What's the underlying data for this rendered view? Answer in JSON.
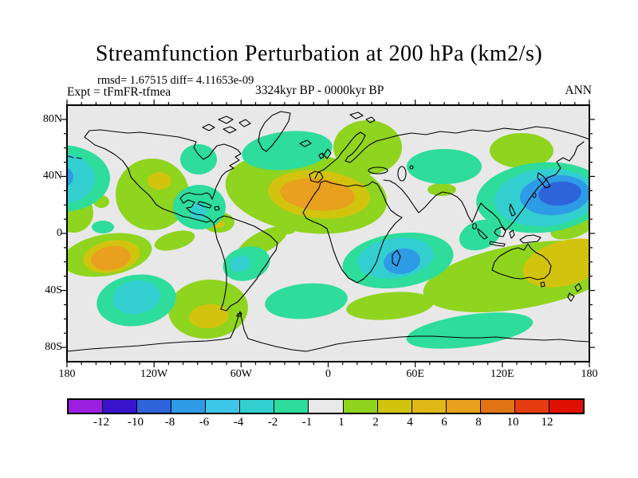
{
  "header": {
    "title": "Streamfunction Perturbation at 200 hPa (km2/s)",
    "stats_line": "rmsd= 1.67515 diff= 4.11653e-09",
    "expt_label": "Expt = tFmFR-tfmea",
    "period_label": "3324kyr BP - 0000kyr BP",
    "season_label": "ANN"
  },
  "chart_data": {
    "type": "filled_contour_map",
    "title": "Streamfunction Perturbation at 200 hPa (km2/s)",
    "variable": "Streamfunction Perturbation",
    "level": "200 hPa",
    "units": "km2/s",
    "rmsd": 1.67515,
    "diff": 4.11653e-09,
    "period": "3324kyr BP - 0000kyr BP",
    "season": "ANN",
    "projection": "equirectangular",
    "lon_range": [
      -180,
      180
    ],
    "lat_range": [
      -90,
      90
    ],
    "lon_ticks": {
      "major": [
        {
          "label": "180",
          "lon": -180
        },
        {
          "label": "120W",
          "lon": -120
        },
        {
          "label": "60W",
          "lon": -60
        },
        {
          "label": "0",
          "lon": 0
        },
        {
          "label": "60E",
          "lon": 60
        },
        {
          "label": "120E",
          "lon": 120
        },
        {
          "label": "180",
          "lon": 180
        }
      ],
      "minor_interval_deg": 10
    },
    "lat_ticks": {
      "major": [
        {
          "label": "80N",
          "lat": 80
        },
        {
          "label": "40N",
          "lat": 40
        },
        {
          "label": "0",
          "lat": 0
        },
        {
          "label": "40S",
          "lat": -40
        },
        {
          "label": "80S",
          "lat": -80
        }
      ],
      "minor_interval_deg": 10
    },
    "colorbar": {
      "boundaries": [
        -12,
        -10,
        -8,
        -6,
        -4,
        -2,
        -1,
        1,
        2,
        4,
        6,
        8,
        10,
        12
      ],
      "colors": [
        "#9B1FE0",
        "#3914CC",
        "#2E63DC",
        "#2E9BE6",
        "#3EC6E8",
        "#33CFD0",
        "#2EDC9C",
        "#E8E8E8",
        "#8FD41F",
        "#D2C40E",
        "#E0B818",
        "#E8A01E",
        "#E07414",
        "#E63C12",
        "#E01000"
      ],
      "neutral_band": "-1 to 1 (gray background)"
    },
    "ring_format": "[color_band_index, cx, cy, rx, ry, rot] in map pixels (655x322, 0/0 = 180W/90N)",
    "anomalies": [
      {
        "name": "north-atlantic-africa-positive",
        "sign": "+",
        "peak_band": "6 to 8",
        "rings": [
          [
            8,
            300,
            110,
            102,
            50,
            8
          ],
          [
            9,
            316,
            112,
            64,
            30,
            5
          ],
          [
            11,
            314,
            112,
            47,
            20,
            5
          ]
        ]
      },
      {
        "name": "europe-scandinavia-positive",
        "sign": "+",
        "peak_band": "1 to 2",
        "rings": [
          [
            8,
            377,
            53,
            43,
            34,
            0
          ]
        ]
      },
      {
        "name": "western-north-america-positive",
        "sign": "+",
        "peak_band": "2 to 4",
        "rings": [
          [
            8,
            107,
            112,
            46,
            45,
            0
          ],
          [
            9,
            116,
            95,
            15,
            11,
            0
          ]
        ]
      },
      {
        "name": "caribbean-positive",
        "sign": "+",
        "peak_band": "2 to 4",
        "rings": [
          [
            8,
            190,
            147,
            20,
            13,
            0
          ],
          [
            9,
            189,
            149,
            9,
            5,
            0
          ]
        ]
      },
      {
        "name": "ne-siberia-positive",
        "sign": "+",
        "peak_band": "1 to 2",
        "rings": [
          [
            8,
            570,
            57,
            40,
            22,
            0
          ]
        ]
      },
      {
        "name": "central-asia-small-positive",
        "sign": "+",
        "peak_band": "1 to 2",
        "rings": [
          [
            8,
            470,
            106,
            18,
            8,
            0
          ]
        ]
      },
      {
        "name": "se-pacific-positive-wrap-west",
        "sign": "+",
        "peak_band": "6 to 8",
        "rings": [
          [
            8,
            50,
            188,
            57,
            26,
            -10
          ],
          [
            9,
            56,
            190,
            36,
            20,
            -10
          ],
          [
            11,
            55,
            192,
            25,
            15,
            -10
          ]
        ]
      },
      {
        "name": "patagonia-positive",
        "sign": "+",
        "peak_band": "2 to 4",
        "rings": [
          [
            8,
            177,
            256,
            50,
            37,
            -5
          ],
          [
            9,
            178,
            265,
            25,
            15,
            -5
          ]
        ]
      },
      {
        "name": "australia-swath-positive",
        "sign": "+",
        "peak_band": "2 to 4",
        "rings": [
          [
            8,
            570,
            215,
            125,
            40,
            -10
          ],
          [
            9,
            625,
            198,
            55,
            28,
            -15
          ]
        ]
      },
      {
        "name": "new-guinea-positive",
        "sign": "+",
        "peak_band": "1 to 2",
        "rings": [
          [
            8,
            635,
            152,
            30,
            14,
            -20
          ]
        ]
      },
      {
        "name": "south-america-north-band-1",
        "sign": "+",
        "peak_band": "1 to 2",
        "rings": [
          [
            8,
            135,
            170,
            26,
            11,
            -15
          ]
        ]
      },
      {
        "name": "south-america-north-band-2",
        "sign": "+",
        "peak_band": "1 to 2",
        "rings": [
          [
            8,
            245,
            172,
            35,
            13,
            -28
          ]
        ]
      },
      {
        "name": "gulf-of-guinea-small-positive",
        "sign": "+",
        "peak_band": "1 to 2",
        "rings": [
          [
            8,
            277,
            157,
            9,
            5,
            0
          ]
        ]
      },
      {
        "name": "south-indian-positive",
        "sign": "+",
        "peak_band": "1 to 2",
        "rings": [
          [
            8,
            405,
            252,
            55,
            17,
            -5
          ]
        ]
      },
      {
        "name": "left-edge-green-positive",
        "sign": "+",
        "peak_band": "1 to 2",
        "rings": [
          [
            8,
            8,
            135,
            25,
            25,
            0
          ]
        ]
      },
      {
        "name": "left-dot-green-positive",
        "sign": "+",
        "peak_band": "1 to 2",
        "rings": [
          [
            8,
            43,
            121,
            10,
            8,
            0
          ]
        ]
      },
      {
        "name": "nw-pacific-japan-negative",
        "sign": "-",
        "peak_band": "-10 to -8",
        "rings": [
          [
            6,
            595,
            116,
            82,
            44,
            -5
          ],
          [
            5,
            600,
            116,
            64,
            36,
            -5
          ],
          [
            3,
            612,
            113,
            44,
            25,
            -5
          ],
          [
            2,
            618,
            111,
            27,
            15,
            -5
          ]
        ]
      },
      {
        "name": "nw-pacific-wrap-east-negative",
        "sign": "-",
        "peak_band": "-8 to -6",
        "rings": [
          [
            6,
            -8,
            92,
            62,
            42,
            0
          ],
          [
            5,
            -10,
            92,
            45,
            32,
            0
          ],
          [
            3,
            -12,
            90,
            20,
            15,
            0
          ]
        ]
      },
      {
        "name": "hudson-bay-negative",
        "sign": "-",
        "peak_band": "-2 to -1",
        "rings": [
          [
            6,
            165,
            68,
            23,
            19,
            0
          ]
        ]
      },
      {
        "name": "greenland-north-atlantic-negative",
        "sign": "-",
        "peak_band": "-2 to -1",
        "rings": [
          [
            6,
            276,
            57,
            57,
            24,
            -6
          ]
        ]
      },
      {
        "name": "gulf-of-mexico-negative",
        "sign": "-",
        "peak_band": "-4 to -2",
        "rings": [
          [
            6,
            166,
            128,
            33,
            28,
            0
          ],
          [
            5,
            165,
            133,
            10,
            11,
            0
          ]
        ]
      },
      {
        "name": "central-asia-negative",
        "sign": "-",
        "peak_band": "-2 to -1",
        "rings": [
          [
            6,
            473,
            77,
            47,
            22,
            0
          ]
        ]
      },
      {
        "name": "indonesia-negative",
        "sign": "-",
        "peak_band": "-2 to -1",
        "rings": [
          [
            6,
            518,
            163,
            27,
            18,
            -20
          ]
        ]
      },
      {
        "name": "south-pacific-negative",
        "sign": "-",
        "peak_band": "-4 to -2",
        "rings": [
          [
            6,
            87,
            245,
            50,
            32,
            -8
          ],
          [
            5,
            87,
            241,
            30,
            21,
            -8
          ]
        ]
      },
      {
        "name": "se-brazil-coast-negative",
        "sign": "-",
        "peak_band": "-4 to -2",
        "rings": [
          [
            6,
            225,
            199,
            30,
            21,
            -15
          ],
          [
            5,
            217,
            199,
            13,
            10,
            -15
          ]
        ]
      },
      {
        "name": "south-atlantic-negative",
        "sign": "-",
        "peak_band": "-2 to -1",
        "rings": [
          [
            6,
            300,
            246,
            52,
            22,
            -5
          ]
        ]
      },
      {
        "name": "antarctic-band-negative",
        "sign": "-",
        "peak_band": "-2 to -1",
        "rings": [
          [
            6,
            505,
            283,
            80,
            20,
            -8
          ]
        ]
      },
      {
        "name": "left-dot-teal-negative",
        "sign": "-",
        "peak_band": "-2 to -1",
        "rings": [
          [
            6,
            45,
            153,
            14,
            8,
            0
          ]
        ]
      },
      {
        "name": "southern-africa-madagascar-negative",
        "sign": "-",
        "peak_band": "-8 to -6",
        "rings": [
          [
            6,
            415,
            195,
            70,
            34,
            -8
          ],
          [
            5,
            412,
            192,
            48,
            25,
            -8
          ],
          [
            3,
            420,
            196,
            23,
            16,
            -8
          ]
        ]
      }
    ]
  }
}
